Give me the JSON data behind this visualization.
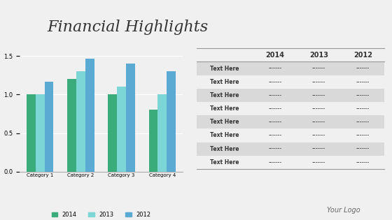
{
  "title": "Financial Highlights",
  "title_fontsize": 16,
  "title_fontstyle": "italic",
  "title_fontfamily": "serif",
  "background_color": "#f0f0f0",
  "chart_bg": "#f0f0f0",
  "categories": [
    "Category 1",
    "Category 2",
    "Category 3",
    "Category 4"
  ],
  "series": {
    "2014": [
      1.0,
      1.2,
      1.0,
      0.8
    ],
    "2013": [
      1.0,
      1.3,
      1.1,
      1.0
    ],
    "2012": [
      1.17,
      1.47,
      1.4,
      1.3
    ]
  },
  "bar_colors": {
    "2014": "#3aab7b",
    "2013": "#7dd6d6",
    "2012": "#5baad4"
  },
  "ylim": [
    0,
    1.6
  ],
  "yticks": [
    0,
    0.5,
    1.0,
    1.5
  ],
  "years": [
    "2014",
    "2013",
    "2012"
  ],
  "table_rows": [
    [
      "Text Here",
      "-------",
      "-------",
      "-------"
    ],
    [
      "Text Here",
      "-------",
      "-------",
      "-------"
    ],
    [
      "Text Here",
      "-------",
      "-------",
      "-------"
    ],
    [
      "Text Here",
      "-------",
      "-------",
      "-------"
    ],
    [
      "Text Here",
      "-------",
      "-------",
      "-------"
    ],
    [
      "Text Here",
      "-------",
      "-------",
      "-------"
    ],
    [
      "Text Here",
      "-------",
      "-------",
      "-------"
    ],
    [
      "Text Here",
      "-------",
      "-------",
      "-------"
    ]
  ],
  "table_header": [
    "",
    "2014",
    "2013",
    "2012"
  ],
  "footer_text": "Your Logo",
  "footer_fontsize": 7,
  "row_alt_color": "#d9d9d9",
  "row_normal_color": "#f0f0f0"
}
